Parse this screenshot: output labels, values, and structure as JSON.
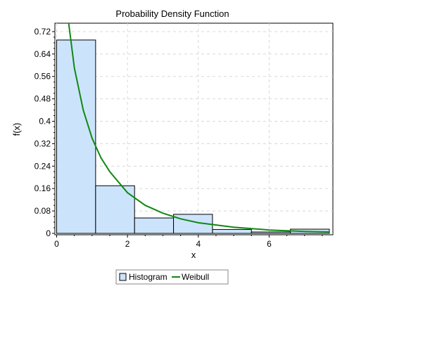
{
  "chart_data": {
    "type": "bar",
    "title": "Probability Density Function",
    "xlabel": "x",
    "ylabel": "f(x)",
    "xlim": [
      -0.05,
      7.8
    ],
    "ylim": [
      -0.005,
      0.75
    ],
    "xticks": [
      0,
      2,
      4,
      6
    ],
    "yticks": [
      0,
      0.08,
      0.16,
      0.24,
      0.32,
      0.4,
      0.48,
      0.56,
      0.64,
      0.72
    ],
    "grid": true,
    "legend_position": "bottom",
    "histogram": {
      "name": "Histogram",
      "color": "#cce4fb",
      "edge_color": "#000000",
      "bins": [
        {
          "x0": 0.0,
          "x1": 1.1,
          "density": 0.69
        },
        {
          "x0": 1.1,
          "x1": 2.2,
          "density": 0.17
        },
        {
          "x0": 2.2,
          "x1": 3.3,
          "density": 0.055
        },
        {
          "x0": 3.3,
          "x1": 4.4,
          "density": 0.068
        },
        {
          "x0": 4.4,
          "x1": 5.5,
          "density": 0.014
        },
        {
          "x0": 5.5,
          "x1": 6.6,
          "density": 0.005
        },
        {
          "x0": 6.6,
          "x1": 7.7,
          "density": 0.015
        }
      ]
    },
    "curve": {
      "name": "Weibull",
      "color": "#118811",
      "x": [
        0.34,
        0.5,
        0.75,
        1.0,
        1.25,
        1.5,
        2.0,
        2.5,
        3.0,
        3.5,
        4.0,
        5.0,
        6.0,
        7.0,
        7.7
      ],
      "y": [
        0.75,
        0.59,
        0.44,
        0.34,
        0.27,
        0.22,
        0.145,
        0.1,
        0.072,
        0.052,
        0.038,
        0.022,
        0.012,
        0.007,
        0.005
      ]
    }
  }
}
